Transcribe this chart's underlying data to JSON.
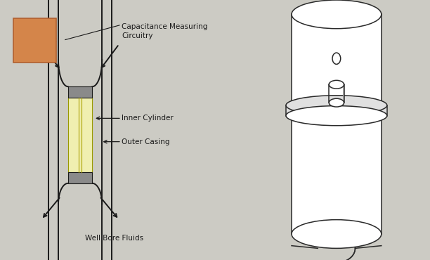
{
  "bg_color": "#cccbc4",
  "black": "#1a1a1a",
  "gray_flange": "#8a8a8a",
  "yellow_cyl": "#f0efb0",
  "orange_box": "#d4854a",
  "outline": "#2a2a2a",
  "white": "#ffffff",
  "light_gray": "#e0e0e0",
  "labels": {
    "cap": "Capacitance Measuring\nCircuitry",
    "inner": "Inner Cylinder",
    "outer": "Outer Casing",
    "well": "Well Bore Fluids"
  },
  "fontsize": 7.5
}
